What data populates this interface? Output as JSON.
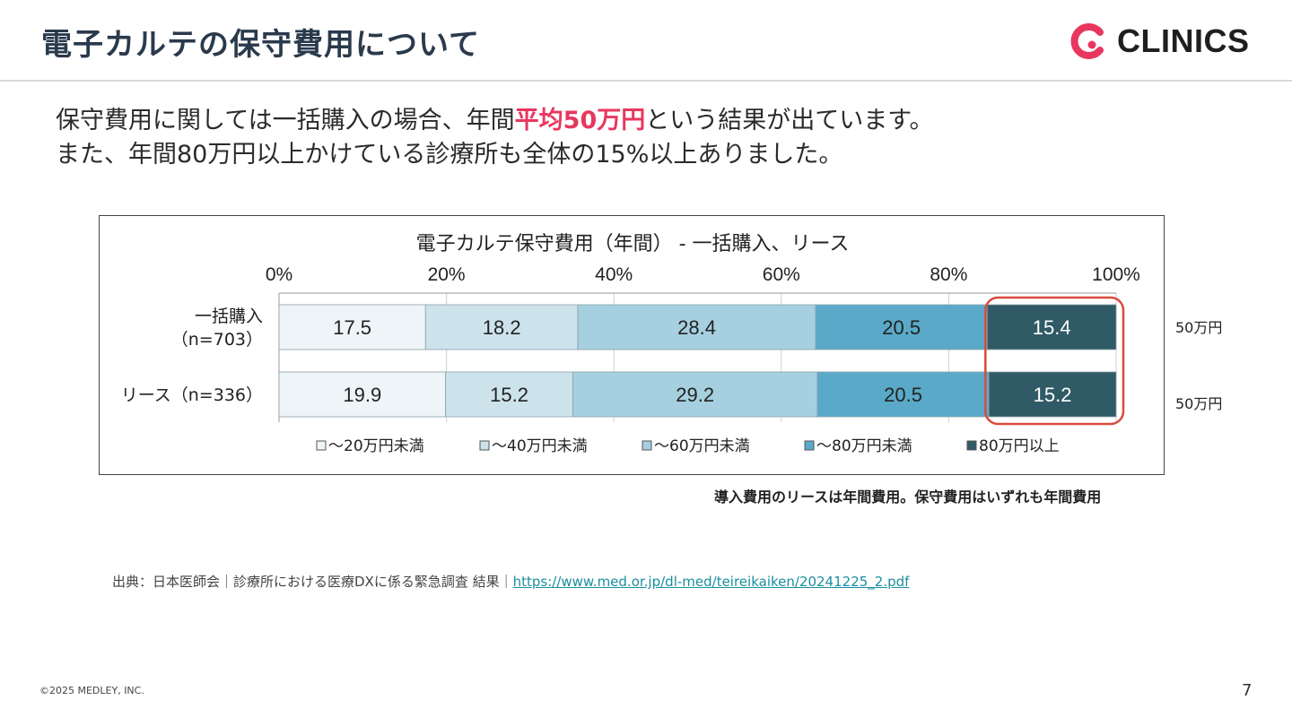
{
  "header": {
    "title": "電子カルテの保守費用について",
    "logo_text": "CLINICS",
    "brand_color": "#e8375f"
  },
  "intro": {
    "line1_pre": "保守費用に関しては一括購入の場合、年間",
    "line1_highlight": "平均50万円",
    "line1_post": "という結果が出ています。",
    "line2": "また、年間80万円以上かけている診療所も全体の15%以上ありました。"
  },
  "chart_data": {
    "type": "bar",
    "orientation": "horizontal-stacked-100",
    "title": "電子カルテ保守費用（年間） - 一括購入、リース",
    "xlim": [
      0,
      100
    ],
    "x_ticks": [
      "0%",
      "20%",
      "40%",
      "60%",
      "80%",
      "100%"
    ],
    "categories": [
      [
        "一括購入",
        "（n=703）"
      ],
      [
        "リース（n=336）"
      ]
    ],
    "series": [
      {
        "name": "～20万円未満",
        "values": [
          17.5,
          19.9
        ],
        "color": "#eef4f7"
      },
      {
        "name": "～40万円未満",
        "values": [
          18.2,
          15.2
        ],
        "color": "#cde3ec"
      },
      {
        "name": "～60万円未満",
        "values": [
          28.4,
          29.2
        ],
        "color": "#a6d0e0"
      },
      {
        "name": "～80万円未満",
        "values": [
          20.5,
          20.5
        ],
        "color": "#5aa9c8"
      },
      {
        "name": "80万円以上",
        "values": [
          15.4,
          15.2
        ],
        "color": "#2f5a66"
      }
    ],
    "side_labels": [
      "50万円",
      "50万円"
    ],
    "highlight_series": "80万円以上",
    "highlight_color": "#d94b3e",
    "legend_position": "bottom",
    "grid": true
  },
  "note": "導入費用のリースは年間費用。保守費用はいずれも年間費用",
  "source": {
    "text": "出典：日本医師会｜診療所における医療DXに係る緊急調査 結果｜",
    "link": "https://www.med.or.jp/dl-med/teireikaiken/20241225_2.pdf"
  },
  "footer": {
    "copyright": "©2025 MEDLEY, INC.",
    "page": "7"
  }
}
